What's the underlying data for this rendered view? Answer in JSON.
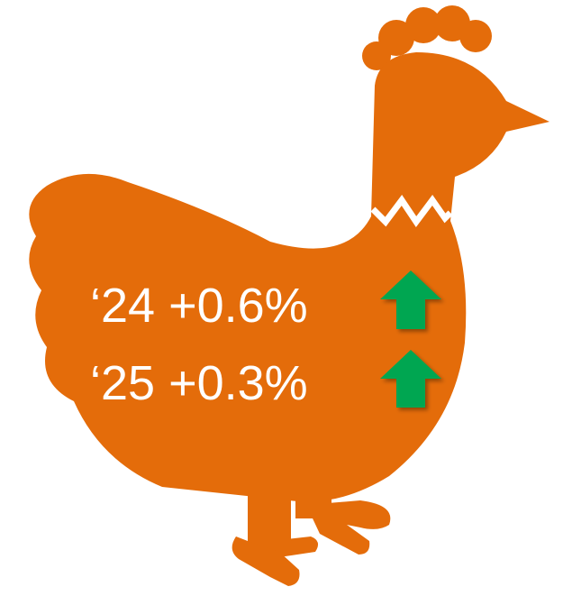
{
  "rows": [
    {
      "label": "‘24 +0.6%"
    },
    {
      "label": "‘25 +0.3%"
    }
  ]
}
